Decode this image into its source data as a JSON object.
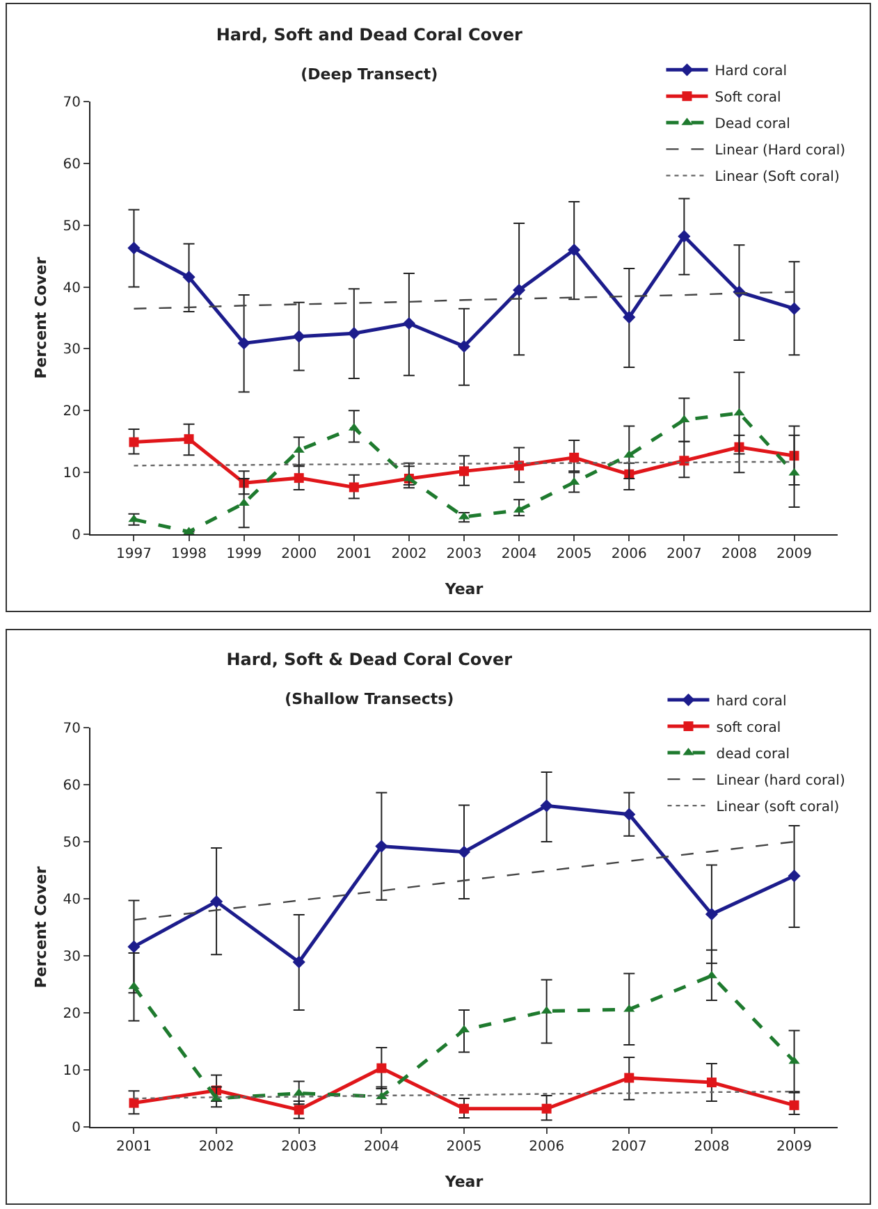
{
  "chart_data": [
    {
      "type": "line",
      "title": "Hard, Soft and Dead Coral Cover",
      "subtitle": "(Deep Transect)",
      "xlabel": "Year",
      "ylabel": "Percent Cover",
      "categories": [
        "1997",
        "1998",
        "1999",
        "2000",
        "2001",
        "2002",
        "2003",
        "2004",
        "2005",
        "2006",
        "2007",
        "2008",
        "2009"
      ],
      "ylim": [
        0,
        70
      ],
      "yticks": [
        0,
        10,
        20,
        30,
        40,
        50,
        60,
        70
      ],
      "grid": false,
      "legend": "top right",
      "series": [
        {
          "name": "Hard coral",
          "color": "#1c1c8c",
          "marker": "diamond",
          "line_style": "solid",
          "values": [
            46.3,
            41.6,
            30.9,
            32,
            32.5,
            34.1,
            30.4,
            39.5,
            46,
            35.1,
            48.2,
            39.2,
            36.5
          ],
          "errors": [
            [
              40,
              52.5
            ],
            [
              36,
              47
            ],
            [
              23,
              38.7
            ],
            [
              26.5,
              37.5
            ],
            [
              25.2,
              39.7
            ],
            [
              25.7,
              42.2
            ],
            [
              24.1,
              36.5
            ],
            [
              29,
              50.3
            ],
            [
              38,
              53.8
            ],
            [
              27,
              43
            ],
            [
              42,
              54.3
            ],
            [
              31.4,
              46.8
            ],
            [
              29,
              44.1
            ]
          ]
        },
        {
          "name": "Soft coral",
          "color": "#e0161a",
          "marker": "square",
          "line_style": "solid",
          "values": [
            14.9,
            15.4,
            8.3,
            9.1,
            7.6,
            9,
            10.2,
            11.1,
            12.4,
            9.7,
            11.9,
            14.1,
            12.7
          ],
          "errors": [
            [
              13,
              17
            ],
            [
              12.8,
              17.8
            ],
            [
              6.5,
              10.2
            ],
            [
              7.2,
              11
            ],
            [
              5.8,
              9.6
            ],
            [
              7.5,
              11
            ],
            [
              7.9,
              12.7
            ],
            [
              8.4,
              14
            ],
            [
              10.2,
              15.2
            ],
            [
              7.2,
              11.5
            ],
            [
              9.2,
              15
            ],
            [
              10,
              16
            ],
            [
              8,
              16
            ]
          ]
        },
        {
          "name": "Dead coral",
          "color": "#1e7a2e",
          "marker": "triangle",
          "line_style": "dashed",
          "values": [
            2.4,
            0.4,
            5,
            13.6,
            17.2,
            9,
            2.8,
            3.9,
            8.4,
            12.8,
            18.5,
            19.6,
            9.9
          ],
          "errors": [
            [
              1.5,
              3.3
            ],
            null,
            [
              1.1,
              9
            ],
            [
              11.2,
              15.7
            ],
            [
              14.9,
              20
            ],
            [
              8,
              11.5
            ],
            [
              2,
              3.5
            ],
            [
              3,
              5.6
            ],
            [
              6.8,
              10
            ],
            [
              9,
              17.5
            ],
            [
              15,
              22
            ],
            [
              13,
              26.2
            ],
            [
              4.4,
              17.5
            ]
          ]
        },
        {
          "name": "Linear (Hard coral)",
          "color": "#444444",
          "marker": "none",
          "line_style": "dashed",
          "values": [
            36.5,
            36.7,
            37,
            37.2,
            37.4,
            37.6,
            37.9,
            38.1,
            38.3,
            38.5,
            38.7,
            39,
            39.2
          ]
        },
        {
          "name": "Linear (Soft coral)",
          "color": "#666666",
          "marker": "none",
          "line_style": "dotted",
          "values": [
            11.1,
            11.2,
            11.2,
            11.3,
            11.3,
            11.4,
            11.4,
            11.5,
            11.5,
            11.6,
            11.6,
            11.7,
            11.7
          ]
        }
      ]
    },
    {
      "type": "line",
      "title": "Hard, Soft & Dead Coral Cover",
      "subtitle": "(Shallow Transects)",
      "xlabel": "Year",
      "ylabel": "Percent Cover",
      "categories": [
        "2001",
        "2002",
        "2003",
        "2004",
        "2005",
        "2006",
        "2007",
        "2008",
        "2009"
      ],
      "ylim": [
        0,
        70
      ],
      "yticks": [
        0,
        10,
        20,
        30,
        40,
        50,
        60,
        70
      ],
      "grid": false,
      "legend": "top right",
      "series": [
        {
          "name": "hard coral",
          "color": "#1c1c8c",
          "marker": "diamond",
          "line_style": "solid",
          "values": [
            31.6,
            39.5,
            28.9,
            49.2,
            48.2,
            56.3,
            54.8,
            37.3,
            44
          ],
          "errors": [
            [
              23.5,
              39.7
            ],
            [
              30.2,
              48.9
            ],
            [
              20.5,
              37.2
            ],
            [
              39.8,
              58.6
            ],
            [
              40,
              56.4
            ],
            [
              50,
              62.2
            ],
            [
              51,
              58.6
            ],
            [
              28.7,
              45.9
            ],
            [
              35,
              52.8
            ]
          ]
        },
        {
          "name": "soft coral",
          "color": "#e0161a",
          "marker": "square",
          "line_style": "solid",
          "values": [
            4.2,
            6.4,
            3,
            10.3,
            3.2,
            3.2,
            8.6,
            7.8,
            3.8
          ],
          "errors": [
            [
              2.3,
              6.3
            ],
            [
              4.5,
              9.1
            ],
            [
              1.5,
              4.5
            ],
            [
              6.7,
              13.9
            ],
            [
              1.6,
              5
            ],
            [
              1.2,
              5.5
            ],
            [
              4.8,
              12.2
            ],
            [
              4.5,
              11.1
            ],
            [
              2.2,
              6.2
            ]
          ]
        },
        {
          "name": "dead coral",
          "color": "#1e7a2e",
          "marker": "triangle",
          "line_style": "dashed",
          "values": [
            24.6,
            5,
            5.9,
            5.3,
            17,
            20.3,
            20.6,
            26.5,
            11.5
          ],
          "errors": [
            [
              18.6,
              30.5
            ],
            [
              3.5,
              7
            ],
            [
              4,
              8
            ],
            [
              4,
              7
            ],
            [
              13.1,
              20.5
            ],
            [
              14.7,
              25.8
            ],
            [
              14.4,
              26.9
            ],
            [
              22.2,
              31
            ],
            [
              6,
              16.9
            ]
          ]
        },
        {
          "name": "Linear (hard coral)",
          "color": "#444444",
          "marker": "none",
          "line_style": "dashed",
          "values": [
            36.3,
            38,
            39.7,
            41.4,
            43.2,
            44.9,
            46.6,
            48.3,
            50
          ]
        },
        {
          "name": "Linear (soft coral)",
          "color": "#666666",
          "marker": "none",
          "line_style": "dotted",
          "values": [
            5,
            5.2,
            5.3,
            5.5,
            5.6,
            5.8,
            5.9,
            6.1,
            6.2
          ]
        }
      ]
    }
  ]
}
